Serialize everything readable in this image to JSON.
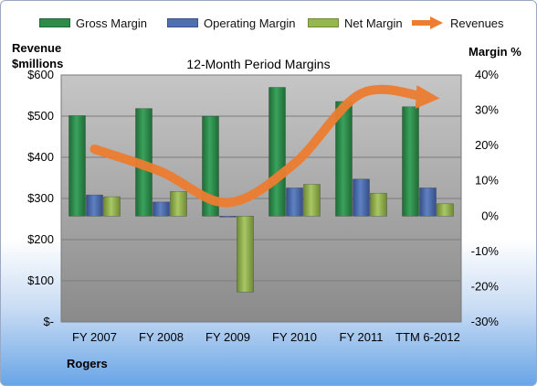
{
  "chart_data": {
    "type": "bar",
    "title": "12-Month Period Margins",
    "company": "Rogers",
    "categories": [
      "FY 2007",
      "FY 2008",
      "FY 2009",
      "FY 2010",
      "FY 2011",
      "TTM 6-2012"
    ],
    "left_axis": {
      "label_line1": "Revenue",
      "label_line2": "$millions",
      "ylim": [
        0,
        600
      ],
      "ticks": [
        {
          "value": 600,
          "label": "$600"
        },
        {
          "value": 500,
          "label": "$500"
        },
        {
          "value": 400,
          "label": "$400"
        },
        {
          "value": 300,
          "label": "$300"
        },
        {
          "value": 200,
          "label": "$200"
        },
        {
          "value": 100,
          "label": "$100"
        },
        {
          "value": 0,
          "label": "$-"
        }
      ]
    },
    "right_axis": {
      "label": "Margin %",
      "ylim": [
        -30,
        40
      ],
      "ticks": [
        {
          "value": 40,
          "label": "40%"
        },
        {
          "value": 30,
          "label": "30%"
        },
        {
          "value": 20,
          "label": "20%"
        },
        {
          "value": 10,
          "label": "10%"
        },
        {
          "value": 0,
          "label": "0%"
        },
        {
          "value": -10,
          "label": "-10%"
        },
        {
          "value": -20,
          "label": "-20%"
        },
        {
          "value": -30,
          "label": "-30%"
        }
      ]
    },
    "series": [
      {
        "name": "Gross Margin",
        "type": "bar",
        "axis": "right",
        "color": "#2e8b4a",
        "values": [
          28.5,
          30.5,
          28.3,
          36.5,
          32.5,
          31.0
        ]
      },
      {
        "name": "Operating Margin",
        "type": "bar",
        "axis": "right",
        "color": "#4f6fb0",
        "values": [
          6.0,
          4.0,
          -0.2,
          8.0,
          10.5,
          8.0
        ]
      },
      {
        "name": "Net Margin",
        "type": "bar",
        "axis": "right",
        "color": "#96b74f",
        "values": [
          5.5,
          7.0,
          -21.5,
          9.0,
          6.5,
          3.5
        ]
      },
      {
        "name": "Revenues",
        "type": "line",
        "axis": "left",
        "color": "#ed7d31",
        "values": [
          420,
          365,
          290,
          385,
          555,
          545
        ]
      }
    ],
    "grid": true,
    "legend": "top"
  }
}
